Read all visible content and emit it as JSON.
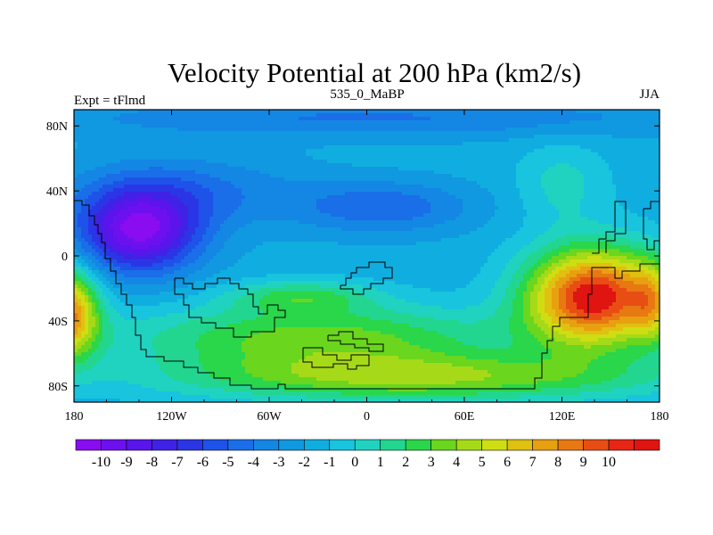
{
  "chart_data": {
    "type": "heatmap",
    "title": "Velocity Potential at 200 hPa (km2/s)",
    "subtitle_left": "Expt = tFlmd",
    "subtitle_center": "535_0_MaBP",
    "subtitle_right": "JJA",
    "xlim": [
      -180,
      180
    ],
    "ylim": [
      -90,
      90
    ],
    "x_ticks": [
      {
        "value": -180,
        "label": "180"
      },
      {
        "value": -120,
        "label": "120W"
      },
      {
        "value": -60,
        "label": "60W"
      },
      {
        "value": 0,
        "label": "0"
      },
      {
        "value": 60,
        "label": "60E"
      },
      {
        "value": 120,
        "label": "120E"
      },
      {
        "value": 180,
        "label": "180"
      }
    ],
    "y_ticks": [
      {
        "value": 80,
        "label": "80N"
      },
      {
        "value": 40,
        "label": "40N"
      },
      {
        "value": 0,
        "label": "0"
      },
      {
        "value": -40,
        "label": "40S"
      },
      {
        "value": -80,
        "label": "80S"
      }
    ],
    "colorbar": {
      "levels": [
        -10,
        -9,
        -8,
        -7,
        -6,
        -5,
        -4,
        -3,
        -2,
        -1,
        0,
        1,
        2,
        3,
        4,
        5,
        6,
        7,
        8,
        9,
        10
      ],
      "labels": [
        "-10",
        "-9",
        "-8",
        "-7",
        "-6",
        "-5",
        "-4",
        "-3",
        "-2",
        "-1",
        "0",
        "1",
        "2",
        "3",
        "4",
        "5",
        "6",
        "7",
        "8",
        "9",
        "10"
      ],
      "colors": [
        "#8a0cf0",
        "#6d10f0",
        "#5a14ec",
        "#4022e6",
        "#2a36e6",
        "#1e52e8",
        "#1a6ee8",
        "#1486e4",
        "#1098e0",
        "#10aee0",
        "#18c4de",
        "#20d2c0",
        "#22d690",
        "#2ad64a",
        "#6ad61e",
        "#a6da18",
        "#cede12",
        "#e0c010",
        "#e8a010",
        "#e87812",
        "#e84e14",
        "#e82616",
        "#e01410"
      ]
    },
    "field_features": [
      {
        "name": "pacific-minimum",
        "lon": -140,
        "lat": 15,
        "value": -10
      },
      {
        "name": "north-pacific-low",
        "lon": -110,
        "lat": 35,
        "value": -6
      },
      {
        "name": "north-atlantic-low",
        "lon": 20,
        "lat": 30,
        "value": -5
      },
      {
        "name": "western-pacific-maximum",
        "lon": 140,
        "lat": -25,
        "value": 10
      },
      {
        "name": "south-america-west-high",
        "lon": -178,
        "lat": -35,
        "value": 8
      },
      {
        "name": "south-atlantic-band",
        "lon": -30,
        "lat": -45,
        "value": 3
      },
      {
        "name": "north-polar",
        "lon": 0,
        "lat": 85,
        "value": -4
      }
    ]
  }
}
